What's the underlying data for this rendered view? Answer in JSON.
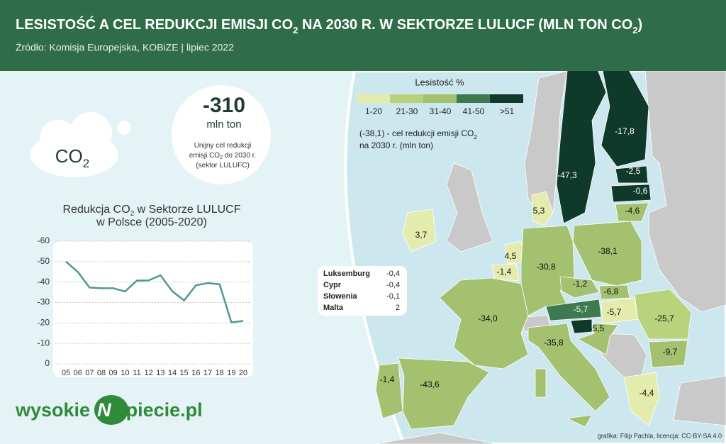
{
  "header": {
    "title": [
      "LESISTOŚĆ A CEL REDUKCJI EMISJI CO",
      "2",
      " NA 2030 R. W SEKTORZE LULUCF (MLN TON CO",
      "2",
      ")"
    ],
    "source": "Źródło:  Komisja Europejska, KOBiZE | lipiec 2022"
  },
  "target": {
    "value": "-310",
    "unit": "mln ton",
    "desc": [
      [
        "Unijny cel redukcji"
      ],
      [
        "emisji CO",
        "2",
        " do 2030 r."
      ],
      [
        "(sektor LULUFC)"
      ]
    ]
  },
  "cloud": [
    "CO",
    "2"
  ],
  "chart_data": {
    "type": "line",
    "title": [
      [
        "Redukcja CO",
        "2",
        " w Sektorze LULUCF"
      ],
      [
        "w Polsce (2005-2020)"
      ]
    ],
    "categories": [
      "05",
      "06",
      "07",
      "08",
      "09",
      "10",
      "11",
      "12",
      "13",
      "14",
      "15",
      "16",
      "17",
      "18",
      "19",
      "20"
    ],
    "values": [
      -50,
      -45,
      -37.3,
      -37,
      -37,
      -35.4,
      -40.7,
      -40.8,
      -43.3,
      -35.5,
      -31,
      -38.4,
      -39.5,
      -38.9,
      -20.3,
      -21
    ],
    "color": "#4a9a96",
    "ylim": [
      0,
      -60
    ],
    "yticks": [
      -60,
      -50,
      -40,
      -30,
      -20,
      -10,
      0
    ],
    "grid": true
  },
  "map": {
    "legend_title": "Lesistość %",
    "legend": [
      {
        "label": "1-20",
        "color": "#e3ebad"
      },
      {
        "label": "21-30",
        "color": "#b9d27c"
      },
      {
        "label": "31-40",
        "color": "#a3c16f"
      },
      {
        "label": "41-50",
        "color": "#3d7a4f"
      },
      {
        "label": ">51",
        "color": "#0f3a2b"
      }
    ],
    "note": [
      [
        "(-38,1) - cel redukcji emisji CO",
        "2"
      ],
      [
        "na 2030 r. (mln ton)"
      ]
    ],
    "countries": [
      "-47,3",
      "-17,8",
      "-2,5",
      "-0,6",
      "-4,6",
      "5,3",
      "3,7",
      "4,5",
      "-1,4",
      "-30,8",
      "-38,1",
      "-1,2",
      "-6,8",
      "-5,7",
      "-5,7",
      "-25,7",
      "-5,5",
      "-34,0",
      "-35,8",
      "-9,7",
      "-1,4",
      "-43,6",
      "-4,4"
    ],
    "small": [
      [
        "Luksemburg",
        "-0,4"
      ],
      [
        "Cypr",
        "-0,4"
      ],
      [
        "Słowenia",
        "-0,1"
      ],
      [
        "Malta",
        "2"
      ]
    ]
  },
  "logo": [
    "wysokie",
    "N",
    "apiecie.pl"
  ],
  "credit": "grafika: Filip Pachla, licencja: CC-BY-SA 4.0"
}
